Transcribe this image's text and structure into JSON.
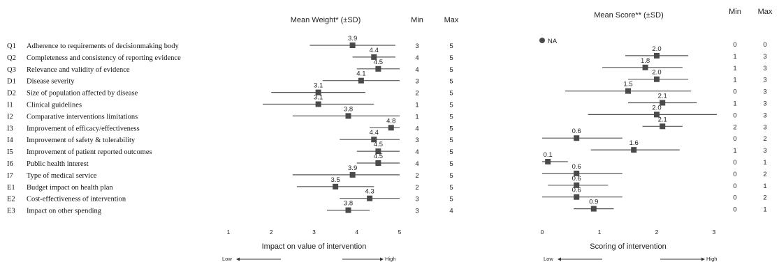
{
  "chart_data": [
    {
      "type": "scatter",
      "title": "Mean Weight* (±SD)",
      "xlabel": "Impact on value of intervention",
      "xlim": [
        1,
        5
      ],
      "xticks": [
        "1",
        "2",
        "3",
        "4",
        "5"
      ],
      "low_label": "Low",
      "high_label": "High",
      "min_header": "Min",
      "max_header": "Max",
      "points": [
        {
          "mean": 3.9,
          "label": "3.9",
          "lo": 2.9,
          "hi": 4.9,
          "min": "3",
          "max": "5"
        },
        {
          "mean": 4.4,
          "label": "4.4",
          "lo": 3.9,
          "hi": 4.9,
          "min": "4",
          "max": "5"
        },
        {
          "mean": 4.5,
          "label": "4.5",
          "lo": 4.0,
          "hi": 5.0,
          "min": "4",
          "max": "5"
        },
        {
          "mean": 4.1,
          "label": "4.1",
          "lo": 3.2,
          "hi": 5.0,
          "min": "3",
          "max": "5"
        },
        {
          "mean": 3.1,
          "label": "3.1",
          "lo": 2.0,
          "hi": 4.2,
          "min": "2",
          "max": "5"
        },
        {
          "mean": 3.1,
          "label": "3.1",
          "lo": 1.8,
          "hi": 4.4,
          "min": "1",
          "max": "5"
        },
        {
          "mean": 3.8,
          "label": "3.8",
          "lo": 2.5,
          "hi": 5.0,
          "min": "1",
          "max": "5"
        },
        {
          "mean": 4.8,
          "label": "4.8",
          "lo": 4.3,
          "hi": 5.0,
          "min": "4",
          "max": "5"
        },
        {
          "mean": 4.4,
          "label": "4.4",
          "lo": 3.6,
          "hi": 5.0,
          "min": "3",
          "max": "5"
        },
        {
          "mean": 4.5,
          "label": "4.5",
          "lo": 4.0,
          "hi": 5.0,
          "min": "4",
          "max": "5"
        },
        {
          "mean": 4.5,
          "label": "4.5",
          "lo": 4.0,
          "hi": 5.0,
          "min": "4",
          "max": "5"
        },
        {
          "mean": 3.9,
          "label": "3.9",
          "lo": 2.5,
          "hi": 5.0,
          "min": "2",
          "max": "5"
        },
        {
          "mean": 3.5,
          "label": "3.5",
          "lo": 2.6,
          "hi": 4.4,
          "min": "2",
          "max": "5"
        },
        {
          "mean": 4.3,
          "label": "4.3",
          "lo": 3.6,
          "hi": 5.0,
          "min": "3",
          "max": "5"
        },
        {
          "mean": 3.8,
          "label": "3.8",
          "lo": 3.3,
          "hi": 4.3,
          "min": "3",
          "max": "4"
        }
      ]
    },
    {
      "type": "scatter",
      "title": "Mean Score** (±SD)",
      "xlabel": "Scoring of intervention",
      "xlim": [
        0,
        3
      ],
      "xticks": [
        "0",
        "1",
        "2",
        "3"
      ],
      "low_label": "Low",
      "high_label": "High",
      "min_header": "Min",
      "max_header": "Max",
      "points": [
        {
          "na": true,
          "label": "NA",
          "min": "0",
          "max": "0"
        },
        {
          "mean": 2.0,
          "label": "2.0",
          "lo": 1.45,
          "hi": 2.55,
          "min": "1",
          "max": "3"
        },
        {
          "mean": 1.8,
          "label": "1.8",
          "lo": 1.05,
          "hi": 2.45,
          "min": "1",
          "max": "3"
        },
        {
          "mean": 2.0,
          "label": "2.0",
          "lo": 1.5,
          "hi": 2.55,
          "min": "1",
          "max": "3"
        },
        {
          "mean": 1.5,
          "label": "1.5",
          "lo": 0.4,
          "hi": 2.6,
          "min": "0",
          "max": "3"
        },
        {
          "mean": 2.1,
          "label": "2.1",
          "lo": 1.5,
          "hi": 2.7,
          "min": "1",
          "max": "3"
        },
        {
          "mean": 2.0,
          "label": "2.0",
          "lo": 0.8,
          "hi": 3.05,
          "min": "0",
          "max": "3"
        },
        {
          "mean": 2.1,
          "label": "2.1",
          "lo": 1.75,
          "hi": 2.45,
          "min": "2",
          "max": "3"
        },
        {
          "mean": 0.6,
          "label": "0.6",
          "lo": 0.0,
          "hi": 1.4,
          "min": "0",
          "max": "2"
        },
        {
          "mean": 1.6,
          "label": "1.6",
          "lo": 0.85,
          "hi": 2.4,
          "min": "1",
          "max": "3"
        },
        {
          "mean": 0.1,
          "label": "0.1",
          "lo": 0.0,
          "hi": 0.45,
          "min": "0",
          "max": "1"
        },
        {
          "mean": 0.6,
          "label": "0.6",
          "lo": 0.0,
          "hi": 1.4,
          "min": "0",
          "max": "2"
        },
        {
          "mean": 0.6,
          "label": "0.6",
          "lo": 0.1,
          "hi": 1.15,
          "min": "0",
          "max": "1"
        },
        {
          "mean": 0.6,
          "label": "0.6",
          "lo": 0.0,
          "hi": 1.4,
          "min": "0",
          "max": "2"
        },
        {
          "mean": 0.9,
          "label": "0.9",
          "lo": 0.55,
          "hi": 1.25,
          "min": "0",
          "max": "1"
        }
      ]
    }
  ],
  "criteria": [
    {
      "code": "Q1",
      "name": "Adherence to requirements of decisionmaking body"
    },
    {
      "code": "Q2",
      "name": "Completeness and consistency of reporting evidence"
    },
    {
      "code": "Q3",
      "name": "Relevance and validity of evidence"
    },
    {
      "code": "D1",
      "name": "Disease severity"
    },
    {
      "code": "D2",
      "name": "Size of population affected by disease"
    },
    {
      "code": "I1",
      "name": "Clinical guidelines"
    },
    {
      "code": "I2",
      "name": "Comparative interventions limitations"
    },
    {
      "code": "I3",
      "name": "Improvement of efficacy/effectiveness"
    },
    {
      "code": "I4",
      "name": "Improvement of safety & tolerability"
    },
    {
      "code": "I5",
      "name": "Improvement of patient reported outcomes"
    },
    {
      "code": "I6",
      "name": "Public health interest"
    },
    {
      "code": "I7",
      "name": "Type of medical service"
    },
    {
      "code": "E1",
      "name": "Budget impact on health plan"
    },
    {
      "code": "E2",
      "name": "Cost-effectiveness of intervention"
    },
    {
      "code": "E3",
      "name": "Impact on other spending"
    }
  ],
  "colors": {
    "marker": "#4a4a4a",
    "line": "#555555",
    "text": "#222222"
  }
}
